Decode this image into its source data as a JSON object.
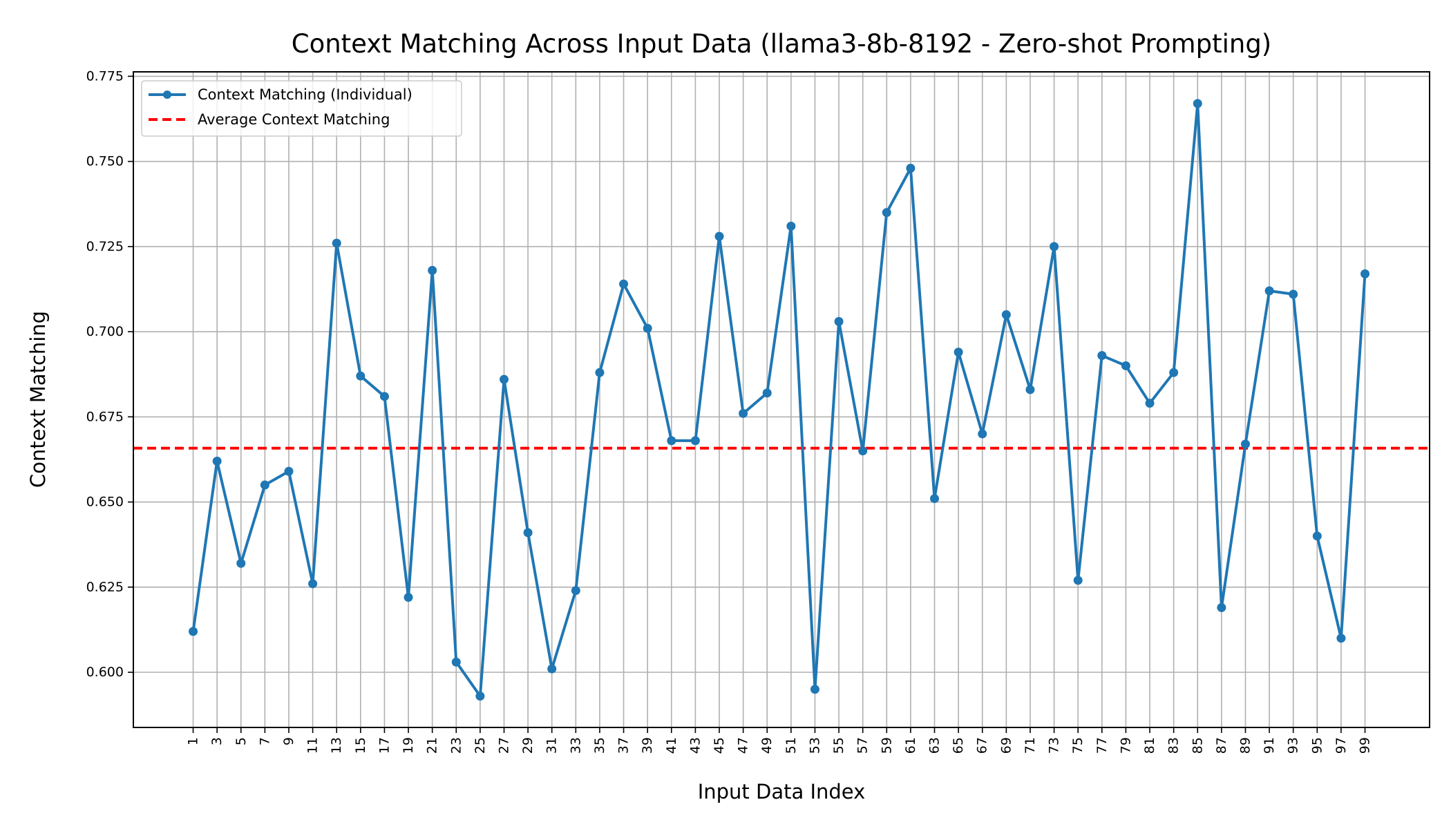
{
  "chart_data": {
    "type": "line",
    "title": "Context Matching Across Input Data (llama3-8b-8192 - Zero-shot Prompting)",
    "xlabel": "Input Data Index",
    "ylabel": "Context Matching",
    "x": [
      1,
      3,
      5,
      7,
      9,
      11,
      13,
      15,
      17,
      19,
      21,
      23,
      25,
      27,
      29,
      31,
      33,
      35,
      37,
      39,
      41,
      43,
      45,
      47,
      49,
      51,
      53,
      55,
      57,
      59,
      61,
      63,
      65,
      67,
      69,
      71,
      73,
      75,
      77,
      79,
      81,
      83,
      85,
      87,
      89,
      91,
      93,
      95,
      97,
      99
    ],
    "xticks": [
      "1",
      "3",
      "5",
      "7",
      "9",
      "11",
      "13",
      "15",
      "17",
      "19",
      "21",
      "23",
      "25",
      "27",
      "29",
      "31",
      "33",
      "35",
      "37",
      "39",
      "41",
      "43",
      "45",
      "47",
      "49",
      "51",
      "53",
      "55",
      "57",
      "59",
      "61",
      "63",
      "65",
      "67",
      "69",
      "71",
      "73",
      "75",
      "77",
      "79",
      "81",
      "83",
      "85",
      "87",
      "89",
      "91",
      "93",
      "95",
      "97",
      "99"
    ],
    "series": [
      {
        "name": "Context Matching (Individual)",
        "color": "#1f77b4",
        "values": [
          0.612,
          0.662,
          0.632,
          0.655,
          0.659,
          0.626,
          0.726,
          0.687,
          0.681,
          0.622,
          0.718,
          0.603,
          0.593,
          0.686,
          0.641,
          0.601,
          0.624,
          0.688,
          0.714,
          0.701,
          0.668,
          0.668,
          0.728,
          0.676,
          0.682,
          0.731,
          0.595,
          0.703,
          0.665,
          0.735,
          0.748,
          0.651,
          0.694,
          0.67,
          0.705,
          0.683,
          0.725,
          0.627,
          0.693,
          0.69,
          0.679,
          0.688,
          0.767,
          0.619,
          0.667,
          0.712,
          0.711,
          0.64,
          0.61,
          0.717
        ]
      }
    ],
    "average": {
      "name": "Average Context Matching",
      "value": 0.6658,
      "color": "#ff0000"
    },
    "yticks": [
      "0.600",
      "0.625",
      "0.650",
      "0.675",
      "0.700",
      "0.725",
      "0.750",
      "0.775"
    ],
    "ylim": [
      0.5838,
      0.7763
    ],
    "xlim": [
      -4.0,
      104.4
    ],
    "grid": true,
    "legend_position": "upper-left"
  }
}
